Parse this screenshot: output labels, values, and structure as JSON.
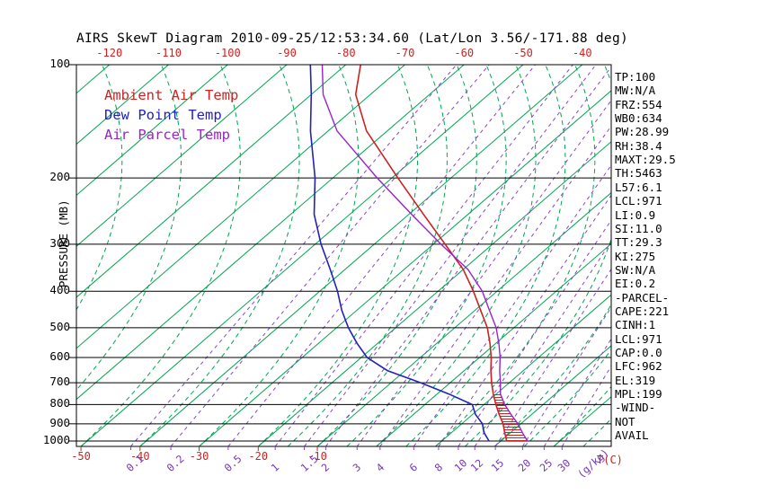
{
  "header": {
    "title": "AIRS SkewT Diagram 2010-09-25/12:53:34.60 (Lat/Lon 3.56/-171.88 deg)"
  },
  "colors": {
    "isotherm_green": "#00a550",
    "moist_green": "#00a550",
    "mixing_purple": "#8844cc",
    "temp_red": "#cc2222",
    "dew_blue": "#2222bb",
    "parcel_purple": "#9922cc",
    "label_purple": "#7733bb",
    "axis_black": "#000000"
  },
  "stats": {
    "lines": [
      "TP:100",
      "MW:N/A",
      "FRZ:554",
      "WB0:634",
      "PW:28.99",
      "RH:38.4",
      "MAXT:29.5",
      "TH:5463",
      "L57:6.1",
      "LCL:971",
      "LI:0.9",
      "SI:11.0",
      "TT:29.3",
      "KI:275",
      "SW:N/A",
      "EI:0.2",
      "-PARCEL-",
      "CAPE:221",
      "CINH:1",
      "LCL:971",
      "CAP:0.0",
      "LFC:962",
      "EL:319",
      "MPL:199",
      "-WIND-",
      "NOT",
      "AVAIL"
    ]
  },
  "chart_data": {
    "type": "line",
    "title": "AIRS SkewT Diagram 2010-09-25/12:53:34.60 (Lat/Lon 3.56/-171.88 deg)",
    "xlabel": "T(C)",
    "ylabel": "PRESSURE (MB)",
    "mixing_unit": "(g/kg)",
    "pressure_range_mb": [
      100,
      1013
    ],
    "pressure_ticks_mb": [
      100,
      200,
      300,
      400,
      500,
      600,
      700,
      800,
      900,
      1000
    ],
    "top_axis_temps_c": [
      -120,
      -110,
      -100,
      -90,
      -80,
      -70,
      -60,
      -50,
      -40
    ],
    "bottom_axis_temps_c": [
      -50,
      -40,
      -30,
      -20,
      -10
    ],
    "mixing_ratio_g_kg": [
      0.1,
      0.2,
      0.5,
      1,
      1.5,
      2,
      3,
      4,
      6,
      8,
      10,
      12,
      15,
      20,
      25,
      30
    ],
    "isotherm_range_c": [
      -170,
      40
    ],
    "isotherm_step_c": 10,
    "grid": "skew-t log-p",
    "legend_position": "upper-left",
    "pressure_mb": [
      1000,
      950,
      900,
      850,
      800,
      750,
      700,
      650,
      600,
      550,
      500,
      450,
      400,
      350,
      300,
      250,
      200,
      150,
      120,
      100
    ],
    "series": [
      {
        "name": "Ambient Air Temp",
        "color": "#cc2222",
        "values_c": [
          21,
          19,
          17,
          14.5,
          12,
          9.5,
          7,
          4.5,
          2,
          -1,
          -4.5,
          -9,
          -14,
          -20,
          -28,
          -37.5,
          -49,
          -63.5,
          -72.5,
          -77.5
        ]
      },
      {
        "name": "Dew Point Temp",
        "color": "#2222bb",
        "values_c": [
          18,
          15.5,
          13.5,
          10.5,
          8,
          2,
          -5,
          -13,
          -19,
          -23.5,
          -28,
          -32.5,
          -37,
          -42.5,
          -49,
          -56,
          -63,
          -73,
          -80,
          -86
        ]
      },
      {
        "name": "Air Parcel Temp",
        "color": "#9922cc",
        "values_c": [
          24.5,
          22,
          19.5,
          16.5,
          13.5,
          10.7,
          8.5,
          6,
          3.5,
          0.5,
          -3,
          -7.5,
          -12.5,
          -19.2,
          -28.7,
          -39.5,
          -52.5,
          -68.5,
          -78,
          -84
        ]
      }
    ]
  }
}
